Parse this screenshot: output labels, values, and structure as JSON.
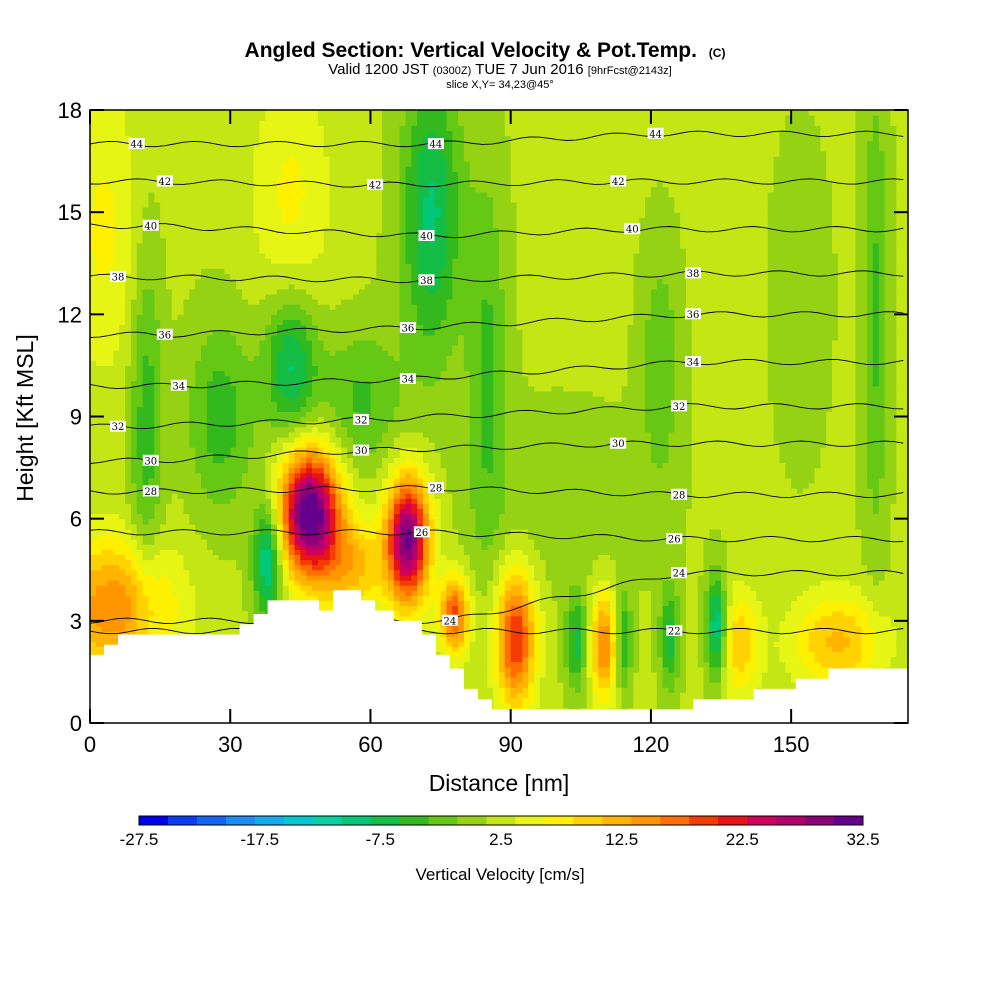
{
  "chart_data": {
    "type": "heatmap",
    "title": "Angled Section: Vertical Velocity & Pot.Temp.",
    "title_suffix": "(C)",
    "subtitle_parts": [
      "Valid 1200 JST",
      "(0300Z)",
      "TUE 7 Jun 2016",
      "[9hrFcst@2143z]"
    ],
    "slice_label": "slice X,Y= 34,23@45°",
    "xlabel": "Distance [nm]",
    "ylabel": "Height [Kft MSL]",
    "xlim": [
      0,
      175
    ],
    "ylim": [
      0,
      18
    ],
    "x_ticks": [
      "0",
      "30",
      "60",
      "90",
      "120",
      "150"
    ],
    "y_ticks": [
      "0",
      "3",
      "6",
      "9",
      "12",
      "15",
      "18"
    ],
    "colorbar": {
      "label": "Vertical Velocity [cm/s]",
      "tick_labels": [
        "-27.5",
        "-17.5",
        "-7.5",
        "2.5",
        "12.5",
        "22.5",
        "32.5"
      ],
      "colors": [
        "#0000f0",
        "#0a3cf5",
        "#1464f5",
        "#1e8cf5",
        "#14aaf0",
        "#00c8d2",
        "#00d2a5",
        "#00c878",
        "#14be46",
        "#32b91e",
        "#64c814",
        "#96d214",
        "#c3e614",
        "#e6f514",
        "#fff000",
        "#ffd200",
        "#ffb400",
        "#ff9600",
        "#ff6e00",
        "#f53c00",
        "#e61414",
        "#d2005a",
        "#b4006e",
        "#8c0078",
        "#64008c"
      ]
    },
    "theta_contours": {
      "unit": "C",
      "levels": [
        {
          "value": "22",
          "label_positions": [
            [
              125,
              2.7
            ]
          ]
        },
        {
          "value": "24",
          "label_positions": [
            [
              77,
              3.0
            ],
            [
              126,
              4.4
            ]
          ]
        },
        {
          "value": "26",
          "label_positions": [
            [
              71,
              5.6
            ],
            [
              125,
              5.4
            ]
          ]
        },
        {
          "value": "28",
          "label_positions": [
            [
              13,
              6.8
            ],
            [
              74,
              6.9
            ],
            [
              126,
              6.7
            ]
          ]
        },
        {
          "value": "30",
          "label_positions": [
            [
              13,
              7.7
            ],
            [
              58,
              8.0
            ],
            [
              113,
              8.2
            ]
          ]
        },
        {
          "value": "32",
          "label_positions": [
            [
              6,
              8.7
            ],
            [
              58,
              8.9
            ],
            [
              126,
              9.3
            ]
          ]
        },
        {
          "value": "34",
          "label_positions": [
            [
              19,
              9.9
            ],
            [
              68,
              10.1
            ],
            [
              129,
              10.6
            ]
          ]
        },
        {
          "value": "36",
          "label_positions": [
            [
              16,
              11.4
            ],
            [
              68,
              11.6
            ],
            [
              129,
              12.0
            ]
          ]
        },
        {
          "value": "38",
          "label_positions": [
            [
              6,
              13.1
            ],
            [
              72,
              13.0
            ],
            [
              129,
              13.2
            ]
          ]
        },
        {
          "value": "40",
          "label_positions": [
            [
              13,
              14.6
            ],
            [
              72,
              14.3
            ],
            [
              116,
              14.5
            ]
          ]
        },
        {
          "value": "42",
          "label_positions": [
            [
              16,
              15.9
            ],
            [
              61,
              15.8
            ],
            [
              113,
              15.9
            ]
          ]
        },
        {
          "value": "44",
          "label_positions": [
            [
              10,
              17.0
            ],
            [
              74,
              17.0
            ],
            [
              121,
              17.3
            ]
          ]
        }
      ]
    },
    "vertical_velocity_cells": [
      {
        "x": 47,
        "y": 6.2,
        "sx": 4.5,
        "sy": 1.3,
        "v": 33
      },
      {
        "x": 68,
        "y": 5.4,
        "sx": 3.2,
        "sy": 1.3,
        "v": 30
      },
      {
        "x": 78,
        "y": 3.2,
        "sx": 2.2,
        "sy": 0.8,
        "v": 18
      },
      {
        "x": 91,
        "y": 2.5,
        "sx": 3.0,
        "sy": 1.4,
        "v": 20
      },
      {
        "x": 110,
        "y": 2.3,
        "sx": 2.0,
        "sy": 1.1,
        "v": 15
      },
      {
        "x": 5,
        "y": 3.4,
        "sx": 9.0,
        "sy": 1.4,
        "v": 14
      },
      {
        "x": 160,
        "y": 2.4,
        "sx": 7.0,
        "sy": 1.0,
        "v": 10
      },
      {
        "x": 139,
        "y": 2.3,
        "sx": 3.0,
        "sy": 1.1,
        "v": 9
      },
      {
        "x": 56,
        "y": 4.6,
        "sx": 5.0,
        "sy": 1.0,
        "v": 10
      },
      {
        "x": 43,
        "y": 15.5,
        "sx": 6.0,
        "sy": 2.5,
        "v": 5
      },
      {
        "x": 3,
        "y": 14.5,
        "sx": 6.0,
        "sy": 3.0,
        "v": 5
      },
      {
        "x": 38,
        "y": 4.8,
        "sx": 2.2,
        "sy": 1.2,
        "v": -14
      },
      {
        "x": 73,
        "y": 15.0,
        "sx": 4.5,
        "sy": 3.0,
        "v": -11
      },
      {
        "x": 43,
        "y": 10.5,
        "sx": 4.0,
        "sy": 1.5,
        "v": -11
      },
      {
        "x": 134,
        "y": 2.8,
        "sx": 1.5,
        "sy": 1.1,
        "v": -14
      },
      {
        "x": 124,
        "y": 2.5,
        "sx": 1.5,
        "sy": 1.1,
        "v": -9
      },
      {
        "x": 104,
        "y": 2.4,
        "sx": 1.6,
        "sy": 1.0,
        "v": -9
      },
      {
        "x": 114,
        "y": 2.4,
        "sx": 1.3,
        "sy": 1.0,
        "v": -9
      },
      {
        "x": 12,
        "y": 9.0,
        "sx": 2.5,
        "sy": 4.0,
        "v": -7
      },
      {
        "x": 28,
        "y": 9.0,
        "sx": 5.0,
        "sy": 2.0,
        "v": -7
      },
      {
        "x": 58,
        "y": 9.5,
        "sx": 6.0,
        "sy": 1.5,
        "v": -6
      },
      {
        "x": 85,
        "y": 10.5,
        "sx": 3.0,
        "sy": 4.0,
        "v": -6
      },
      {
        "x": 122,
        "y": 10.5,
        "sx": 3.0,
        "sy": 2.5,
        "v": -5
      },
      {
        "x": 168,
        "y": 12.0,
        "sx": 2.0,
        "sy": 5.0,
        "v": -6
      },
      {
        "x": 152,
        "y": 12.5,
        "sx": 4.0,
        "sy": 3.0,
        "v": -3
      },
      {
        "x": 100,
        "y": 6.5,
        "sx": 15.0,
        "sy": 2.0,
        "v": -2
      }
    ],
    "terrain_profile": [
      [
        0,
        2.0
      ],
      [
        3,
        2.0
      ],
      [
        3,
        2.3
      ],
      [
        6,
        2.3
      ],
      [
        6,
        2.6
      ],
      [
        32,
        2.6
      ],
      [
        32,
        2.9
      ],
      [
        35,
        2.9
      ],
      [
        35,
        3.2
      ],
      [
        38,
        3.2
      ],
      [
        38,
        3.6
      ],
      [
        49,
        3.6
      ],
      [
        49,
        3.3
      ],
      [
        52,
        3.3
      ],
      [
        52,
        3.9
      ],
      [
        58,
        3.9
      ],
      [
        58,
        3.6
      ],
      [
        61,
        3.6
      ],
      [
        61,
        3.3
      ],
      [
        65,
        3.3
      ],
      [
        65,
        3.0
      ],
      [
        71,
        3.0
      ],
      [
        71,
        2.6
      ],
      [
        74,
        2.6
      ],
      [
        74,
        2.0
      ],
      [
        77,
        2.0
      ],
      [
        77,
        1.6
      ],
      [
        80,
        1.6
      ],
      [
        80,
        1.0
      ],
      [
        83,
        1.0
      ],
      [
        83,
        0.7
      ],
      [
        86,
        0.7
      ],
      [
        86,
        0.4
      ],
      [
        129,
        0.4
      ],
      [
        129,
        0.7
      ],
      [
        142,
        0.7
      ],
      [
        142,
        1.0
      ],
      [
        151,
        1.0
      ],
      [
        151,
        1.3
      ],
      [
        158,
        1.3
      ],
      [
        158,
        1.6
      ],
      [
        175,
        1.6
      ]
    ]
  }
}
